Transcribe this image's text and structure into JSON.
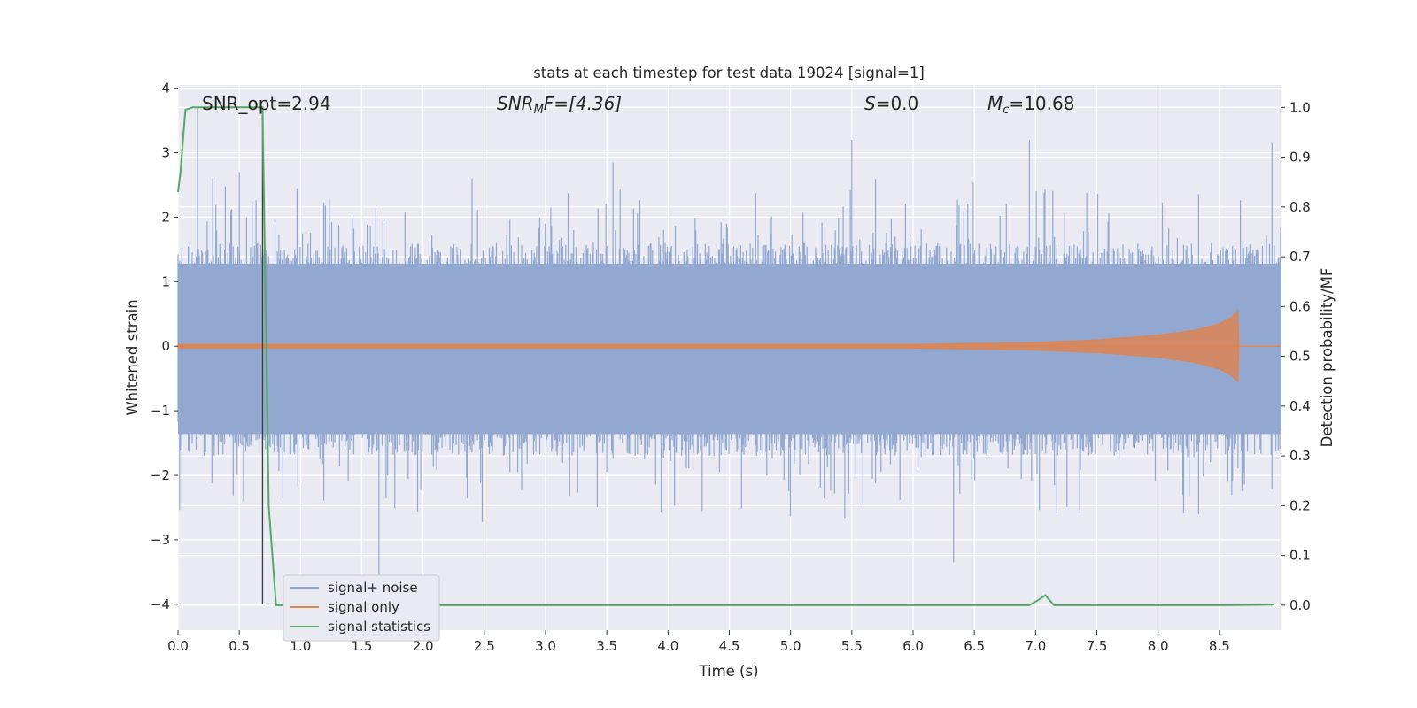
{
  "chart_data": {
    "type": "line",
    "title": "stats at each timestep for test data 19024 [signal=1]",
    "xlabel": "Time (s)",
    "ylabel": "Whitened strain",
    "ylabel_right": "Detection probability/MF",
    "xlim": [
      0.0,
      9.0
    ],
    "ylim": [
      -4.4,
      4.05
    ],
    "ylim_right": [
      -0.05,
      1.045
    ],
    "x_ticks": [
      "0.0",
      "0.5",
      "1.0",
      "1.5",
      "2.0",
      "2.5",
      "3.0",
      "3.5",
      "4.0",
      "4.5",
      "5.0",
      "5.5",
      "6.0",
      "6.5",
      "7.0",
      "7.5",
      "8.0",
      "8.5"
    ],
    "y_ticks": [
      "4",
      "3",
      "2",
      "1",
      "0",
      "−1",
      "−2",
      "−3",
      "−4"
    ],
    "y_ticks_right": [
      "1.0",
      "0.9",
      "0.8",
      "0.7",
      "0.6",
      "0.5",
      "0.4",
      "0.3",
      "0.2",
      "0.1",
      "0.0"
    ],
    "annotations": {
      "snr_opt": "SNR_opt=2.94",
      "snr_mf_name": "SNR",
      "snr_mf_sub": "M",
      "snr_mf_rest": "F=[4.36]",
      "s_name": "S",
      "s_rest": "=0.0",
      "mc_name": "M",
      "mc_sub": "c",
      "mc_rest": "=10.68"
    },
    "vertical_marker_x": 0.69,
    "grid": true,
    "legend_placement": "lower left",
    "series": [
      {
        "name": "signal+ noise",
        "color": "#92a8d1",
        "axis": "left",
        "note_shape": "dense noise band",
        "band_typical_range": [
          -1.7,
          1.6
        ],
        "peaks": [
          [
            0.16,
            3.7
          ],
          [
            0.5,
            2.7
          ],
          [
            1.64,
            -3.6
          ],
          [
            2.4,
            2.6
          ],
          [
            3.55,
            2.85
          ],
          [
            5.5,
            3.2
          ],
          [
            6.33,
            -3.35
          ],
          [
            6.95,
            3.2
          ],
          [
            7.5,
            -1.0
          ],
          [
            8.93,
            3.15
          ]
        ]
      },
      {
        "name": "signal only",
        "color": "#dd8452",
        "axis": "left",
        "envelope": [
          [
            0.0,
            0.03
          ],
          [
            6.0,
            0.03
          ],
          [
            7.0,
            0.06
          ],
          [
            7.5,
            0.1
          ],
          [
            8.0,
            0.17
          ],
          [
            8.3,
            0.25
          ],
          [
            8.5,
            0.35
          ],
          [
            8.6,
            0.45
          ],
          [
            8.65,
            0.55
          ],
          [
            8.66,
            0.0
          ],
          [
            9.0,
            0.0
          ]
        ]
      },
      {
        "name": "signal statistics",
        "color": "#55a868",
        "axis": "right",
        "x": [
          0.0,
          0.02,
          0.06,
          0.12,
          0.2,
          0.4,
          0.6,
          0.69,
          0.74,
          0.8,
          0.9,
          6.95,
          7.02,
          7.08,
          7.15,
          8.5,
          8.95
        ],
        "y": [
          0.83,
          0.87,
          0.995,
          1.0,
          1.0,
          1.0,
          1.0,
          1.0,
          0.2,
          0.0,
          0.0,
          0.0,
          0.01,
          0.02,
          0.0,
          0.0,
          0.001
        ]
      }
    ]
  }
}
